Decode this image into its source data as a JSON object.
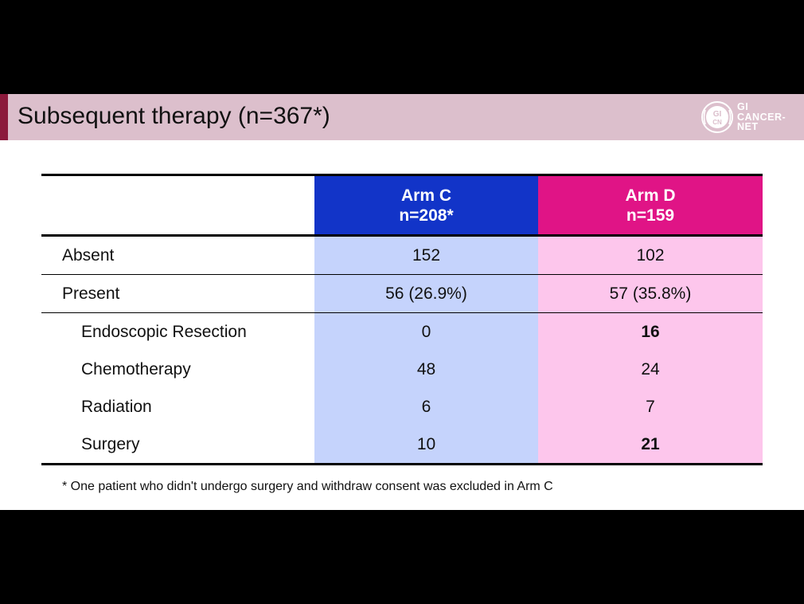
{
  "title": "Subsequent therapy (n=367*)",
  "logo": {
    "line1": "GI",
    "line2": "CANCER-",
    "line3": "NET",
    "seal_text": "GI CN"
  },
  "table": {
    "headers": [
      {
        "line1": "Arm C",
        "line2": "n=208*"
      },
      {
        "line1": "Arm D",
        "line2": "n=159"
      }
    ],
    "rows": [
      {
        "label": "Absent",
        "arm_c": "152",
        "arm_d": "102"
      },
      {
        "label": "Present",
        "arm_c": "56 (26.9%)",
        "arm_d": "57 (35.8%)"
      },
      {
        "label": "Endoscopic Resection",
        "arm_c": "0",
        "arm_d": "16"
      },
      {
        "label": "Chemotherapy",
        "arm_c": "48",
        "arm_d": "24"
      },
      {
        "label": "Radiation",
        "arm_c": "6",
        "arm_d": "7"
      },
      {
        "label": "Surgery",
        "arm_c": "10",
        "arm_d": "21"
      }
    ]
  },
  "footnote": "* One patient who didn't undergo surgery and withdraw consent was excluded in Arm C",
  "colors": {
    "title_bar": "#dcbfcc",
    "title_accent": "#8b1a3c",
    "arm_c_header": "#1234c8",
    "arm_d_header": "#e01486",
    "arm_c_cell": "#c5d3fc",
    "arm_d_cell": "#fdc6ec"
  }
}
